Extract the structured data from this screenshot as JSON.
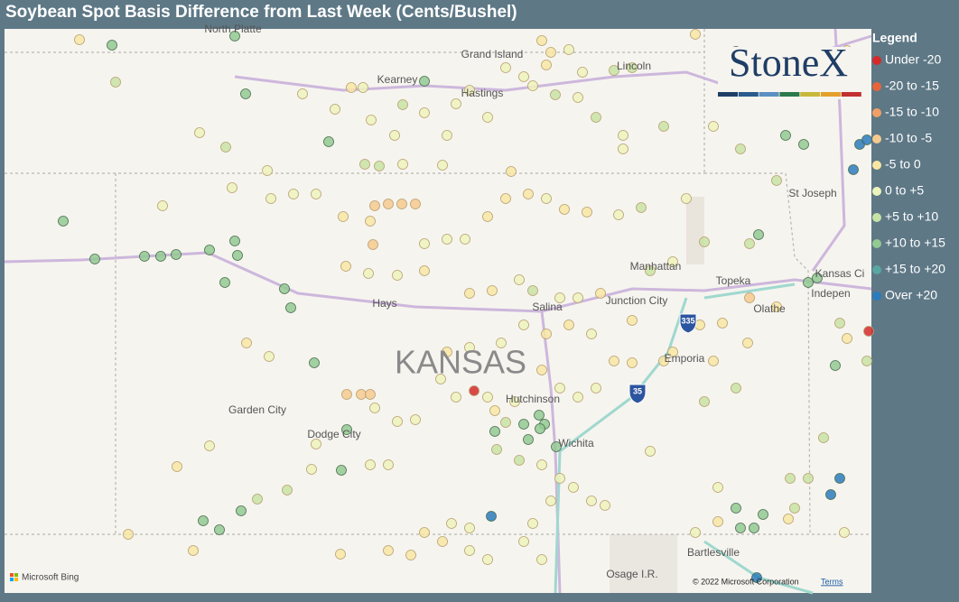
{
  "header": {
    "title": "Soybean Spot Basis Difference from Last Week (Cents/Bushel)"
  },
  "legend": {
    "title": "Legend",
    "items": [
      {
        "label": "Under -20",
        "color": "#d42a2a"
      },
      {
        "label": "-20 to -15",
        "color": "#e8643a"
      },
      {
        "label": "-15 to -10",
        "color": "#f0a066"
      },
      {
        "label": "-10 to -5",
        "color": "#f6c98e"
      },
      {
        "label": "-5 to 0",
        "color": "#f8e6a4"
      },
      {
        "label": "0 to +5",
        "color": "#eef3bc"
      },
      {
        "label": "+5 to +10",
        "color": "#c8e3a6"
      },
      {
        "label": "+10 to +15",
        "color": "#93c993"
      },
      {
        "label": "+15 to +20",
        "color": "#5aa6a2"
      },
      {
        "label": "Over +20",
        "color": "#2b7bbd"
      }
    ]
  },
  "map": {
    "state_label": "KANSAS",
    "places": [
      "North Platte",
      "Kearney",
      "Grand Island",
      "Hastings",
      "Lincoln",
      "St Joseph",
      "Manhattan",
      "Topeka",
      "Kansas Ci",
      "Indepen",
      "Olathe",
      "Hays",
      "Salina",
      "Junction City",
      "Emporia",
      "Garden City",
      "Dodge City",
      "Hutchinson",
      "Wichita",
      "Bartlesville",
      "Osage I.R."
    ],
    "shields": [
      "335",
      "35"
    ],
    "provider": "Microsoft Bing",
    "copyright": "© 2022 Microsoft Corporation",
    "terms": "Terms"
  },
  "logo": {
    "text": "StoneX"
  }
}
